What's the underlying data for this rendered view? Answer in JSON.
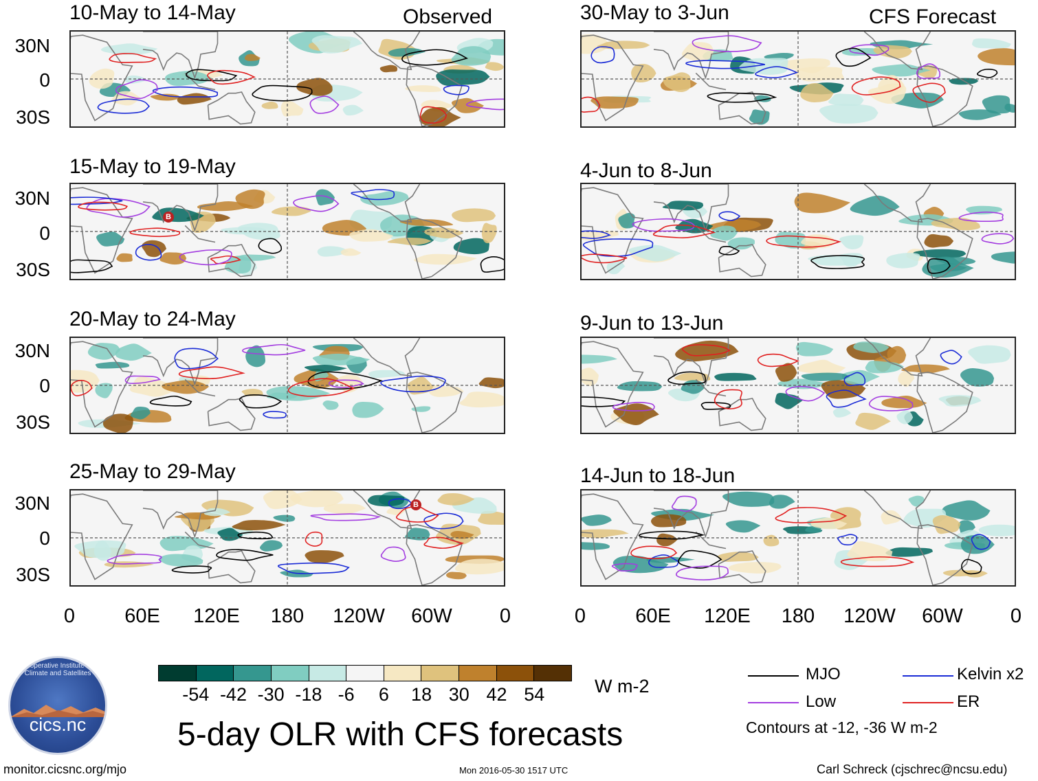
{
  "left_column": {
    "label": "Observed",
    "panels": [
      {
        "period": "10-May to 14-May"
      },
      {
        "period": "15-May to 19-May"
      },
      {
        "period": "20-May to 24-May"
      },
      {
        "period": "25-May to 29-May"
      }
    ]
  },
  "right_column": {
    "label": "CFS Forecast",
    "panels": [
      {
        "period": "30-May to 3-Jun"
      },
      {
        "period": "4-Jun to 8-Jun"
      },
      {
        "period": "9-Jun to 13-Jun"
      },
      {
        "period": "14-Jun to 18-Jun"
      }
    ]
  },
  "latitude_labels": [
    "30N",
    "0",
    "30S"
  ],
  "longitude_labels": [
    "0",
    "60E",
    "120E",
    "180",
    "120W",
    "60W",
    "0"
  ],
  "storm_markers": [
    "B",
    "B"
  ],
  "colorbar": {
    "colors": [
      "#003c30",
      "#01665e",
      "#35978f",
      "#80cdc1",
      "#c7eae5",
      "#f5f5f5",
      "#f6e8c3",
      "#dfc27d",
      "#bf812d",
      "#8c510a",
      "#543005"
    ],
    "ticks": [
      "-54",
      "-42",
      "-30",
      "-18",
      "-6",
      "6",
      "18",
      "30",
      "42",
      "54"
    ],
    "units": "W m-2"
  },
  "title": "5-day OLR with CFS forecasts",
  "legend": {
    "items": [
      {
        "label": "MJO",
        "color": "#000000"
      },
      {
        "label": "Kelvin x2",
        "color": "#1a2bd6"
      },
      {
        "label": "Low",
        "color": "#a33de0"
      },
      {
        "label": "ER",
        "color": "#e02020"
      }
    ],
    "note": "Contours at -12, -36 W m-2"
  },
  "logo": {
    "name": "cics.nc",
    "arc_text": "Cooperative Institute for Climate and Satellites"
  },
  "footer": {
    "website": "monitor.cicsnc.org/mjo",
    "timestamp": "Mon 2016-05-30 1517 UTC",
    "author": "Carl Schreck (cjschrec@ncsu.edu)"
  }
}
